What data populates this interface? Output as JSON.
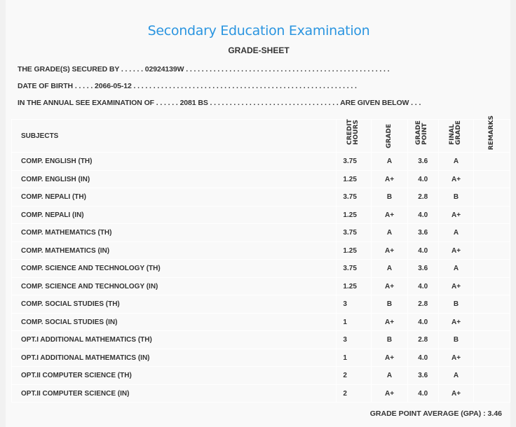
{
  "header": {
    "title": "Secondary Education Examination",
    "subtitle": "GRADE-SHEET"
  },
  "info": {
    "line1": "THE GRADE(S) SECURED BY . . . . . . 02924139W . . . . . . . . . . . . . . . . . . . . . . . . . . . . . . . . . . . . . . . . . . . . . . . . . . . .",
    "line2": "DATE OF BIRTH . . . . . 2066-05-12 . . . . . . . . . . . . . . . . . . . . . . . . . . . . . . . . . . . . . . . . . . . . . . . . . . . . . . . . .",
    "line3": "IN THE ANNUAL SEE EXAMINATION OF . . . . . . 2081 BS . . . . . . . . . . . . . . . . . . . . . . . . . . . . . . . . . ARE GIVEN BELOW . . ."
  },
  "table": {
    "columns": [
      "SUBJECTS",
      "CREDIT HOURS",
      "GRADE",
      "GRADE POINT",
      "FINAL GRADE",
      "REMARKS"
    ],
    "rows": [
      [
        "COMP. ENGLISH (TH)",
        "3.75",
        "A",
        "3.6",
        "A",
        ""
      ],
      [
        "COMP. ENGLISH (IN)",
        "1.25",
        "A+",
        "4.0",
        "A+",
        ""
      ],
      [
        "COMP. NEPALI (TH)",
        "3.75",
        "B",
        "2.8",
        "B",
        ""
      ],
      [
        "COMP. NEPALI (IN)",
        "1.25",
        "A+",
        "4.0",
        "A+",
        ""
      ],
      [
        "COMP. MATHEMATICS (TH)",
        "3.75",
        "A",
        "3.6",
        "A",
        ""
      ],
      [
        "COMP. MATHEMATICS (IN)",
        "1.25",
        "A+",
        "4.0",
        "A+",
        ""
      ],
      [
        "COMP. SCIENCE AND TECHNOLOGY (TH)",
        "3.75",
        "A",
        "3.6",
        "A",
        ""
      ],
      [
        "COMP. SCIENCE AND TECHNOLOGY (IN)",
        "1.25",
        "A+",
        "4.0",
        "A+",
        ""
      ],
      [
        "COMP. SOCIAL STUDIES (TH)",
        "3",
        "B",
        "2.8",
        "B",
        ""
      ],
      [
        "COMP. SOCIAL STUDIES (IN)",
        "1",
        "A+",
        "4.0",
        "A+",
        ""
      ],
      [
        "OPT.I ADDITIONAL MATHEMATICS (TH)",
        "3",
        "B",
        "2.8",
        "B",
        ""
      ],
      [
        "OPT.I ADDITIONAL MATHEMATICS (IN)",
        "1",
        "A+",
        "4.0",
        "A+",
        ""
      ],
      [
        "OPT.II COMPUTER SCIENCE (TH)",
        "2",
        "A",
        "3.6",
        "A",
        ""
      ],
      [
        "OPT.II COMPUTER SCIENCE (IN)",
        "2",
        "A+",
        "4.0",
        "A+",
        ""
      ]
    ]
  },
  "gpa": "GRADE POINT AVERAGE (GPA) : 3.46"
}
